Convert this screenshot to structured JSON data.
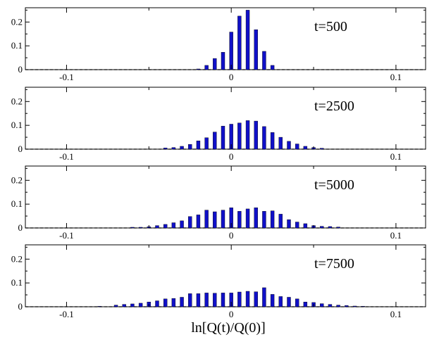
{
  "chart_data": {
    "type": "bar",
    "xlabel": "ln[Q(t)/Q(0)]",
    "xlim": [
      -0.125,
      0.118
    ],
    "ylim": [
      0,
      0.26
    ],
    "x_ticks": [
      -0.1,
      0,
      0.1
    ],
    "x_tick_labels": [
      "-0.1",
      "0",
      "0.1"
    ],
    "y_ticks": [
      0,
      0.1,
      0.2
    ],
    "y_tick_labels": [
      "0",
      "0.1",
      "0.2"
    ],
    "bar_color": "#1010c8",
    "grid": false,
    "panels": [
      {
        "label": "t=500",
        "x": [
          -0.02,
          -0.015,
          -0.01,
          -0.005,
          0,
          0.005,
          0.01,
          0.015,
          0.02,
          0.025
        ],
        "values": [
          0.003,
          0.018,
          0.047,
          0.073,
          0.158,
          0.225,
          0.25,
          0.168,
          0.077,
          0.018
        ]
      },
      {
        "label": "t=2500",
        "x": [
          -0.04,
          -0.035,
          -0.03,
          -0.025,
          -0.02,
          -0.015,
          -0.01,
          -0.005,
          0,
          0.005,
          0.01,
          0.015,
          0.02,
          0.025,
          0.03,
          0.035,
          0.04,
          0.045,
          0.05,
          0.055
        ],
        "values": [
          0.005,
          0.007,
          0.012,
          0.02,
          0.035,
          0.048,
          0.072,
          0.097,
          0.105,
          0.11,
          0.12,
          0.118,
          0.095,
          0.07,
          0.05,
          0.033,
          0.022,
          0.012,
          0.007,
          0.004
        ]
      },
      {
        "label": "t=5000",
        "x": [
          -0.06,
          -0.055,
          -0.05,
          -0.045,
          -0.04,
          -0.035,
          -0.03,
          -0.025,
          -0.02,
          -0.015,
          -0.01,
          -0.005,
          0,
          0.005,
          0.01,
          0.015,
          0.02,
          0.025,
          0.03,
          0.035,
          0.04,
          0.045,
          0.05,
          0.055,
          0.06,
          0.065
        ],
        "values": [
          0.003,
          0.003,
          0.005,
          0.01,
          0.015,
          0.022,
          0.03,
          0.048,
          0.055,
          0.075,
          0.068,
          0.075,
          0.085,
          0.07,
          0.08,
          0.085,
          0.07,
          0.072,
          0.058,
          0.035,
          0.025,
          0.018,
          0.01,
          0.007,
          0.006,
          0.004
        ]
      },
      {
        "label": "t=7500",
        "x": [
          -0.08,
          -0.07,
          -0.065,
          -0.06,
          -0.055,
          -0.05,
          -0.045,
          -0.04,
          -0.035,
          -0.03,
          -0.025,
          -0.02,
          -0.015,
          -0.01,
          -0.005,
          0,
          0.005,
          0.01,
          0.015,
          0.02,
          0.025,
          0.03,
          0.035,
          0.04,
          0.045,
          0.05,
          0.055,
          0.06,
          0.065,
          0.07,
          0.075,
          0.08
        ],
        "values": [
          0.002,
          0.007,
          0.01,
          0.012,
          0.015,
          0.02,
          0.025,
          0.033,
          0.035,
          0.04,
          0.055,
          0.055,
          0.058,
          0.057,
          0.058,
          0.058,
          0.062,
          0.065,
          0.063,
          0.08,
          0.052,
          0.043,
          0.04,
          0.033,
          0.02,
          0.018,
          0.013,
          0.01,
          0.007,
          0.005,
          0.003,
          0.002
        ]
      }
    ]
  }
}
